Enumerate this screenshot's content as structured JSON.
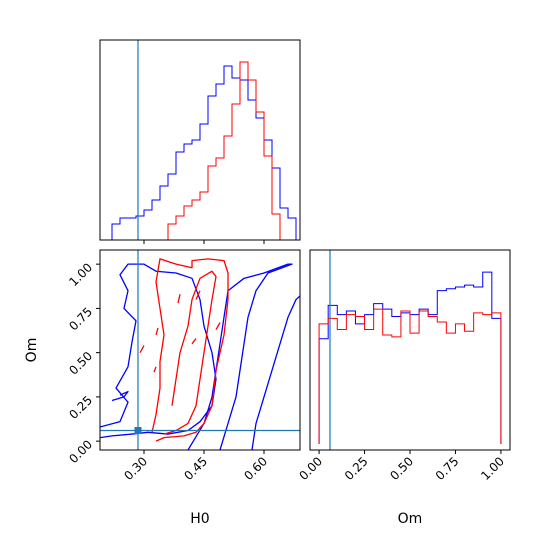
{
  "colors": {
    "series_a": "#0000ff",
    "series_b": "#ff0000",
    "truth": "#1f77b4",
    "axes": "#000000"
  },
  "chart_data": {
    "type": "corner",
    "parameters": [
      "H0",
      "Om"
    ],
    "truth": {
      "H0": 0.285,
      "Om": 0.06
    },
    "hist_H0": {
      "type": "step-histogram",
      "xlim": [
        0.19,
        0.69
      ],
      "bin_edges": [
        0.2,
        0.22,
        0.24,
        0.26,
        0.28,
        0.3,
        0.32,
        0.34,
        0.36,
        0.38,
        0.4,
        0.42,
        0.44,
        0.46,
        0.48,
        0.5,
        0.52,
        0.54,
        0.56,
        0.58,
        0.6,
        0.62,
        0.64,
        0.66,
        0.68
      ],
      "series": [
        {
          "color": "blue",
          "values": [
            0,
            0.08,
            0.11,
            0.11,
            0.12,
            0.15,
            0.2,
            0.27,
            0.33,
            0.44,
            0.48,
            0.5,
            0.58,
            0.72,
            0.78,
            0.87,
            0.81,
            0.8,
            0.7,
            0.61,
            0.5,
            0.36,
            0.16,
            0.11
          ]
        },
        {
          "color": "red",
          "values": [
            0,
            0,
            0,
            0,
            0,
            0,
            0,
            0,
            0.08,
            0.12,
            0.17,
            0.2,
            0.24,
            0.37,
            0.41,
            0.52,
            0.68,
            0.89,
            0.8,
            0.64,
            0.42,
            0.13,
            0,
            0
          ]
        }
      ]
    },
    "hist_Om": {
      "type": "step-histogram",
      "xlim": [
        -0.05,
        1.05
      ],
      "bin_edges": [
        0,
        0.05,
        0.1,
        0.15,
        0.2,
        0.25,
        0.3,
        0.35,
        0.4,
        0.45,
        0.5,
        0.55,
        0.6,
        0.65,
        0.7,
        0.75,
        0.8,
        0.85,
        0.9,
        0.95,
        1.0
      ],
      "series": [
        {
          "color": "blue",
          "values": [
            0.57,
            0.75,
            0.7,
            0.72,
            0.65,
            0.7,
            0.76,
            0.73,
            0.69,
            0.71,
            0.7,
            0.73,
            0.7,
            0.83,
            0.84,
            0.85,
            0.86,
            0.85,
            0.93,
            0.68
          ]
        },
        {
          "color": "red",
          "values": [
            0.65,
            0.68,
            0.62,
            0.7,
            0.69,
            0.62,
            0.73,
            0.59,
            0.58,
            0.72,
            0.6,
            0.72,
            0.69,
            0.66,
            0.6,
            0.65,
            0.61,
            0.71,
            0.7,
            0.71
          ]
        }
      ]
    },
    "joint": {
      "type": "contour",
      "xlim": [
        0.19,
        0.69
      ],
      "ylim": [
        -0.05,
        1.08
      ],
      "series": [
        {
          "color": "blue",
          "contours": [
            [
              [
                0.19,
                0.02
              ],
              [
                0.22,
                0.03
              ],
              [
                0.27,
                0.04
              ],
              [
                0.31,
                0.05
              ],
              [
                0.36,
                0.04
              ],
              [
                0.41,
                0.06
              ],
              [
                0.44,
                0.11
              ],
              [
                0.47,
                0.2
              ],
              [
                0.48,
                0.35
              ],
              [
                0.47,
                0.5
              ],
              [
                0.45,
                0.65
              ],
              [
                0.44,
                0.8
              ],
              [
                0.42,
                0.92
              ],
              [
                0.38,
                0.95
              ],
              [
                0.33,
                0.96
              ],
              [
                0.3,
                1.0
              ],
              [
                0.26,
                1.0
              ],
              [
                0.24,
                0.94
              ],
              [
                0.26,
                0.85
              ],
              [
                0.25,
                0.75
              ],
              [
                0.28,
                0.68
              ],
              [
                0.27,
                0.56
              ],
              [
                0.26,
                0.42
              ],
              [
                0.23,
                0.3
              ],
              [
                0.26,
                0.22
              ],
              [
                0.24,
                0.11
              ],
              [
                0.19,
                0.08
              ]
            ],
            [
              [
                0.41,
                -0.05
              ],
              [
                0.45,
                0.1
              ],
              [
                0.47,
                0.25
              ],
              [
                0.48,
                0.4
              ],
              [
                0.49,
                0.55
              ],
              [
                0.5,
                0.7
              ],
              [
                0.51,
                0.85
              ],
              [
                0.55,
                0.92
              ],
              [
                0.6,
                0.95
              ],
              [
                0.66,
                1.0
              ],
              [
                0.67,
                1.0
              ],
              [
                0.61,
                0.95
              ],
              [
                0.58,
                0.85
              ],
              [
                0.56,
                0.7
              ],
              [
                0.55,
                0.55
              ],
              [
                0.54,
                0.4
              ],
              [
                0.53,
                0.25
              ],
              [
                0.51,
                0.1
              ],
              [
                0.49,
                -0.05
              ]
            ],
            [
              [
                0.57,
                -0.05
              ],
              [
                0.58,
                0.1
              ],
              [
                0.6,
                0.25
              ],
              [
                0.62,
                0.4
              ],
              [
                0.64,
                0.55
              ],
              [
                0.66,
                0.7
              ],
              [
                0.68,
                0.8
              ],
              [
                0.69,
                0.82
              ]
            ],
            [
              [
                0.22,
                0.23
              ],
              [
                0.25,
                0.25
              ],
              [
                0.26,
                0.28
              ],
              [
                0.24,
                0.26
              ]
            ]
          ]
        },
        {
          "color": "red",
          "contours": [
            [
              [
                0.33,
                0.0
              ],
              [
                0.35,
                0.02
              ],
              [
                0.4,
                0.03
              ],
              [
                0.43,
                0.05
              ],
              [
                0.45,
                0.1
              ],
              [
                0.47,
                0.2
              ],
              [
                0.48,
                0.4
              ],
              [
                0.5,
                0.6
              ],
              [
                0.51,
                0.8
              ],
              [
                0.51,
                0.95
              ],
              [
                0.5,
                1.02
              ],
              [
                0.46,
                1.03
              ],
              [
                0.42,
                1.02
              ],
              [
                0.42,
                0.98
              ],
              [
                0.38,
                1.0
              ],
              [
                0.34,
                1.03
              ],
              [
                0.33,
                0.9
              ],
              [
                0.34,
                0.75
              ],
              [
                0.35,
                0.6
              ],
              [
                0.34,
                0.45
              ],
              [
                0.34,
                0.3
              ],
              [
                0.33,
                0.15
              ],
              [
                0.32,
                0.05
              ]
            ],
            [
              [
                0.35,
                0.04
              ],
              [
                0.38,
                0.06
              ],
              [
                0.41,
                0.1
              ],
              [
                0.43,
                0.2
              ],
              [
                0.44,
                0.35
              ],
              [
                0.45,
                0.5
              ],
              [
                0.46,
                0.65
              ],
              [
                0.47,
                0.8
              ],
              [
                0.48,
                0.93
              ],
              [
                0.47,
                0.96
              ],
              [
                0.44,
                0.92
              ],
              [
                0.42,
                0.8
              ],
              [
                0.41,
                0.65
              ],
              [
                0.39,
                0.5
              ],
              [
                0.38,
                0.35
              ],
              [
                0.37,
                0.2
              ]
            ],
            [
              [
                0.29,
                0.5
              ],
              [
                0.3,
                0.54
              ]
            ],
            [
              [
                0.33,
                0.6
              ],
              [
                0.335,
                0.64
              ]
            ],
            [
              [
                0.325,
                0.39
              ],
              [
                0.33,
                0.42
              ]
            ],
            [
              [
                0.385,
                0.78
              ],
              [
                0.39,
                0.83
              ]
            ],
            [
              [
                0.42,
                0.55
              ],
              [
                0.43,
                0.58
              ]
            ],
            [
              [
                0.43,
                0.8
              ],
              [
                0.44,
                0.85
              ]
            ],
            [
              [
                0.48,
                0.63
              ],
              [
                0.49,
                0.67
              ]
            ]
          ]
        }
      ]
    },
    "x_ticks_H0": [
      "0.30",
      "0.45",
      "0.60"
    ],
    "x_tick_values_H0": [
      0.3,
      0.45,
      0.6
    ],
    "y_ticks_Om": [
      "0.00",
      "0.25",
      "0.50",
      "0.75",
      "1.00"
    ],
    "y_tick_values_Om": [
      0.0,
      0.25,
      0.5,
      0.75,
      1.0
    ],
    "x_ticks_Om": [
      "0.00",
      "0.25",
      "0.50",
      "0.75",
      "1.00"
    ],
    "x_tick_values_Om": [
      0.0,
      0.25,
      0.5,
      0.75,
      1.0
    ],
    "xlabel_joint": "H0",
    "ylabel_joint": "Om",
    "xlabel_Om": "Om"
  }
}
